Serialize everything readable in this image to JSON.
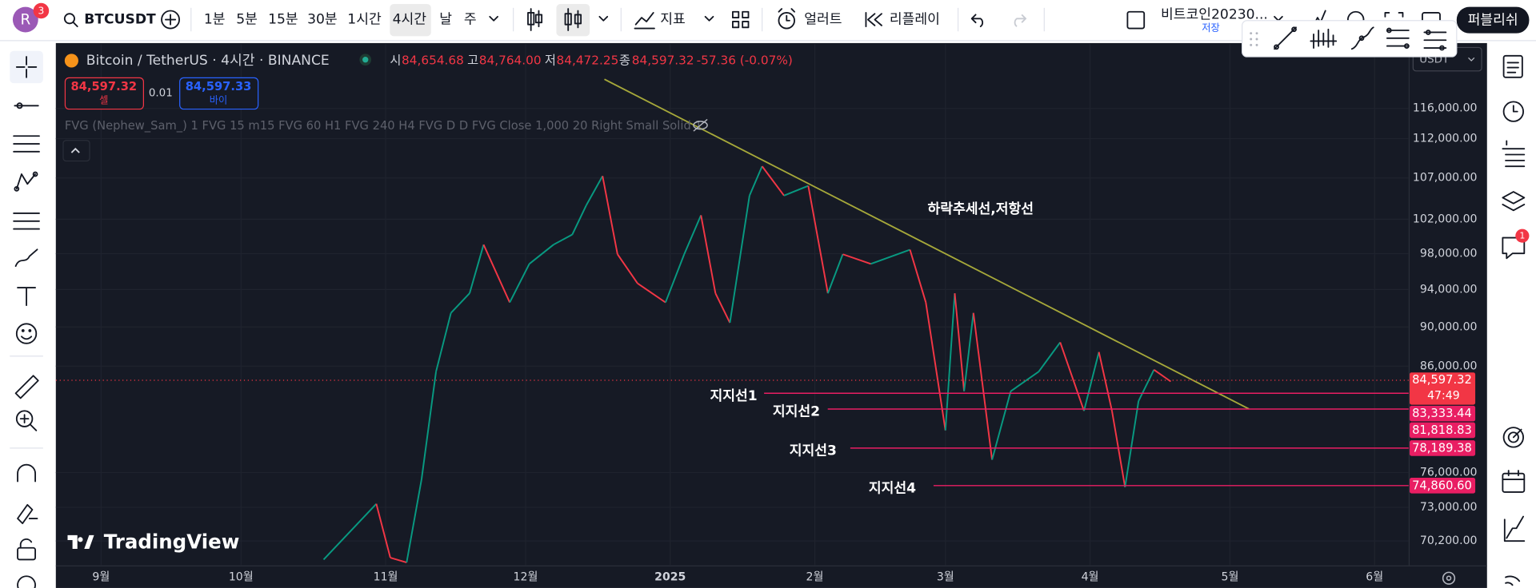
{
  "toolbar": {
    "avatar": "R",
    "avatar_badge": "3",
    "symbol": "BTCUSDT",
    "intervals": [
      "1분",
      "5분",
      "15분",
      "30분",
      "1시간",
      "4시간",
      "날",
      "주"
    ],
    "indicators": "지표",
    "alert": "얼러트",
    "replay": "리플레이",
    "layout_name": "비트코인20230...",
    "save": "저장",
    "publish": "퍼블리쉬"
  },
  "sidebar_badge": "1",
  "legend": {
    "title": "Bitcoin / TetherUS · 4시간 · BINANCE",
    "open_label": "시",
    "open": "84,654.68",
    "high_label": "고",
    "high": "84,764.00",
    "low_label": "저",
    "low": "84,472.25",
    "close_label": "종",
    "close": "84,597.32",
    "change": "-57.36 (-0.07%)",
    "sell_price": "84,597.32",
    "sell": "셀",
    "spread": "0.01",
    "buy_price": "84,597.33",
    "buy": "바이",
    "indicator": "FVG (Nephew_Sam_) 1 FVG 15 m15 FVG 60 H1 FVG 240 H4 FVG D D FVG Close 1,000 20 Right Small Solid 1"
  },
  "currency": "USDT",
  "logo": "TradingView",
  "chart_data": {
    "type": "line",
    "log_scale": true,
    "grid": true,
    "annotation": "하락추세선,저항선",
    "x": [
      47.7,
      59,
      62,
      65.5,
      68.7,
      71.8,
      75,
      79,
      82,
      87.6,
      91.8,
      97,
      101,
      104,
      107.5,
      110.7,
      115,
      121,
      125,
      128.6,
      131.7,
      134.8,
      139,
      141.7,
      146.4,
      151.6,
      155.8,
      159,
      165,
      173.4,
      176.8,
      181,
      183,
      185,
      187,
      191,
      195,
      201,
      205.6,
      210.7,
      213.9,
      216.7,
      219.5,
      222.4,
      225.7,
      229.3
    ],
    "values": [
      68700,
      73290,
      68850,
      68470,
      75410,
      85450,
      91480,
      93590,
      99030,
      92600,
      96840,
      99030,
      100190,
      103650,
      107240,
      97930,
      94670,
      92600,
      97930,
      102470,
      93590,
      90440,
      104830,
      108460,
      104830,
      106030,
      93590,
      97930,
      96840,
      98450,
      92600,
      79820,
      93590,
      83530,
      91480,
      77140,
      83530,
      85450,
      88410,
      81650,
      87420,
      81650,
      74730,
      82590,
      85640,
      84480
    ],
    "up_color": "#089981",
    "down_color": "#f23645",
    "xlim": [
      -9.7,
      280.3
    ],
    "xticks": [
      {
        "value": 0,
        "label": "9월"
      },
      {
        "value": 30,
        "label": "10월"
      },
      {
        "value": 61,
        "label": "11월"
      },
      {
        "value": 91,
        "label": "12월"
      },
      {
        "value": 122,
        "label": "2025"
      },
      {
        "value": 153,
        "label": "2월"
      },
      {
        "value": 181,
        "label": "3월"
      },
      {
        "value": 212,
        "label": "4월"
      },
      {
        "value": 242,
        "label": "5월"
      },
      {
        "value": 273,
        "label": "6월"
      }
    ],
    "ylim": [
      68230,
      125000
    ],
    "yticks": [
      {
        "value": 116000,
        "label": "116,000.00"
      },
      {
        "value": 112000,
        "label": "112,000.00"
      },
      {
        "value": 107000,
        "label": "107,000.00"
      },
      {
        "value": 102000,
        "label": "102,000.00"
      },
      {
        "value": 98000,
        "label": "98,000.00"
      },
      {
        "value": 94000,
        "label": "94,000.00"
      },
      {
        "value": 90000,
        "label": "90,000.00"
      },
      {
        "value": 86000,
        "label": "86,000.00"
      },
      {
        "value": 76000,
        "label": "76,000.00"
      },
      {
        "value": 73000,
        "label": "73,000.00"
      },
      {
        "value": 70200,
        "label": "70,200.00"
      }
    ],
    "last": {
      "value": 84597.32,
      "label": "84,597.32",
      "countdown": "47:49",
      "color": "#f23645"
    },
    "levels": [
      {
        "name": "지지선1",
        "value": 83333.44,
        "label": "83,333.44"
      },
      {
        "name": "지지선2",
        "value": 81818.83,
        "label": "81,818.83"
      },
      {
        "name": "지지선3",
        "value": 78189.38,
        "label": "78,189.38"
      },
      {
        "name": "지지선4",
        "value": 74860.6,
        "label": "74,860.60"
      }
    ],
    "level_color": "#e91e63",
    "trend_color": "#a6a83a"
  }
}
